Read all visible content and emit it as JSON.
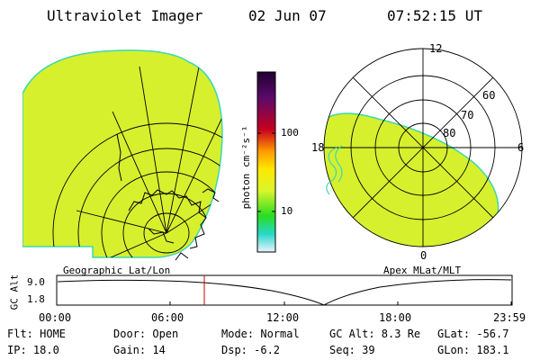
{
  "header": {
    "title": "Ultraviolet Imager",
    "date": "02 Jun 07",
    "time": "07:52:15 UT"
  },
  "colorbar": {
    "unit_label": "photon cm⁻²s⁻¹",
    "ticks": [
      "100",
      "10"
    ],
    "colors": {
      "top": "#200030",
      "purple": "#5a0a6a",
      "red": "#c8001e",
      "orange": "#ff9a00",
      "yellow": "#ffe800",
      "yellow_green": "#d8f52c",
      "green": "#2adc22",
      "cyan": "#26d8c8",
      "pale": "#eef2ff"
    }
  },
  "geo_panel": {
    "label": "Geographic Lat/Lon"
  },
  "apex_panel": {
    "label": "Apex MLat/MLT",
    "mlt_labels": [
      "12",
      "18",
      "6",
      "0"
    ],
    "mlat_labels": [
      "60",
      "70",
      "80"
    ]
  },
  "altitude_plot": {
    "ylabel": "GC Alt",
    "yticks": [
      "9.0",
      "1.8"
    ],
    "xticks": [
      "00:00",
      "06:00",
      "12:00",
      "18:00",
      "23:59"
    ]
  },
  "status": {
    "flt": "Flt: HOME",
    "ip": "IP: 18.0",
    "door": "Door: Open",
    "gain": "Gain: 14",
    "mode": "Mode: Normal",
    "dsp": "Dsp:   -6.2",
    "gc_alt": "GC Alt: 8.3 Re",
    "seq": "Seq: 39",
    "glat": "GLat: -56.7",
    "glon": "GLon: 183.1"
  },
  "image_colors": {
    "fill": "#d6f02e",
    "edge": "#3cd8b0",
    "grid": "#000000",
    "marker": "#cc0000"
  }
}
